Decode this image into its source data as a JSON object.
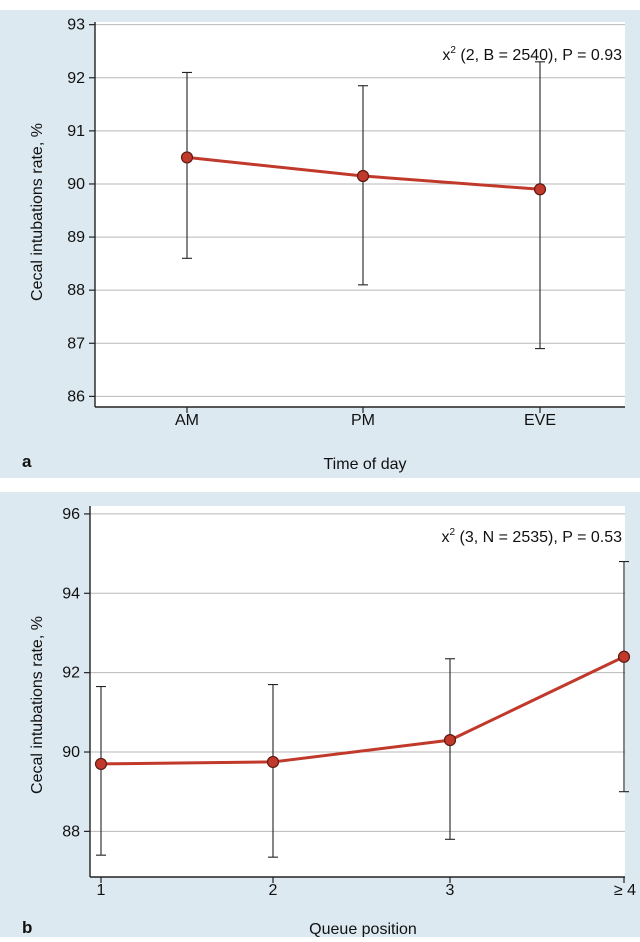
{
  "colors": {
    "panel_background": "#dde9f1",
    "plot_background": "#ffffff",
    "line_and_markers": "#c0392b",
    "marker_fill": "#c0392b",
    "error_bars": "#222222",
    "gridlines": "#b8b8b8",
    "axis": "#222222"
  },
  "chart_data": [
    {
      "type": "line",
      "panel_label": "a",
      "title": "",
      "xlabel": "Time of day",
      "ylabel": "Cecal intubations rate, %",
      "categories": [
        "AM",
        "PM",
        "EVE"
      ],
      "values": [
        90.5,
        90.15,
        89.9
      ],
      "error_low": [
        88.6,
        88.1,
        86.9
      ],
      "error_high": [
        92.1,
        91.85,
        92.3
      ],
      "ylim": [
        85.8,
        93.05
      ],
      "yticks": [
        "86",
        "87",
        "88",
        "89",
        "90",
        "91",
        "92",
        "93"
      ],
      "grid": "horizontal",
      "legend": "none",
      "annotation": {
        "prefix": "x",
        "sup": "2",
        "text": " (2, B = 2540), P = 0.93"
      }
    },
    {
      "type": "line",
      "panel_label": "b",
      "title": "",
      "xlabel": "Queue position",
      "ylabel": "Cecal intubations rate, %",
      "categories": [
        "1",
        "2",
        "3",
        "≥ 4"
      ],
      "values": [
        89.7,
        89.75,
        90.3,
        92.4
      ],
      "error_low": [
        87.4,
        87.35,
        87.8,
        89.0
      ],
      "error_high": [
        91.65,
        91.7,
        92.35,
        94.8
      ],
      "ylim": [
        86.85,
        96.2
      ],
      "yticks": [
        "88",
        "90",
        "92",
        "94",
        "96"
      ],
      "grid": "horizontal",
      "legend": "none",
      "annotation": {
        "prefix": "x",
        "sup": "2",
        "text": " (3, N = 2535), P = 0.53"
      }
    }
  ]
}
